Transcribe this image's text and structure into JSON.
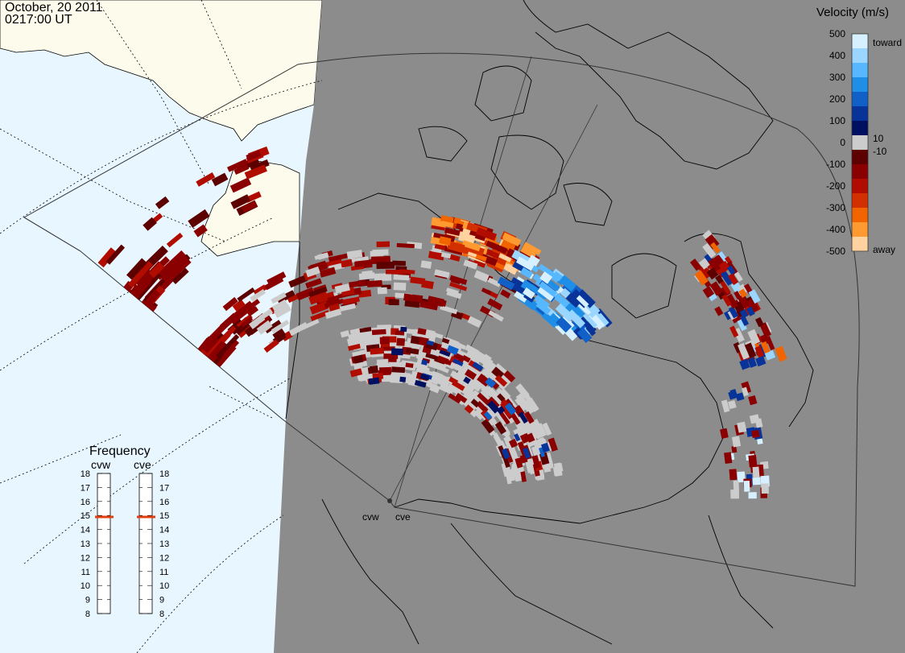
{
  "header": {
    "date": "October, 20 2011",
    "time": "0217:00 UT"
  },
  "radars": [
    {
      "id": "cvw",
      "label": "cvw"
    },
    {
      "id": "cve",
      "label": "cve"
    }
  ],
  "legend": {
    "title": "Velocity (m/s)",
    "ticks": [
      "500",
      "400",
      "300",
      "200",
      "100",
      "0",
      "-100",
      "-200",
      "-300",
      "-400",
      "-500"
    ],
    "inner_ticks": [
      "10",
      "-10"
    ],
    "toward_label": "toward",
    "away_label": "away",
    "colors": {
      "toward": [
        "#d6f0ff",
        "#9ad6ff",
        "#58b8ff",
        "#1e8ee6",
        "#1060c8",
        "#08349a",
        "#001060"
      ],
      "away": [
        "#5c0000",
        "#8a0000",
        "#b00c00",
        "#d23000",
        "#f26400",
        "#ff9a30",
        "#ffd2a0"
      ],
      "gray": "#cccccc"
    }
  },
  "frequency": {
    "title": "Frequency",
    "left_label": "cvw",
    "right_label": "cve",
    "scale": [
      "18",
      "17",
      "16",
      "15",
      "14",
      "13",
      "12",
      "11",
      "10",
      "9",
      "8"
    ],
    "cvw_value_mhz": 14.9,
    "cve_value_mhz": 14.9,
    "marker_color": "#e04010"
  },
  "map_colors": {
    "ocean": "#e8f6ff",
    "land_day": "#fdfbec",
    "night": "#8c8c8c"
  }
}
